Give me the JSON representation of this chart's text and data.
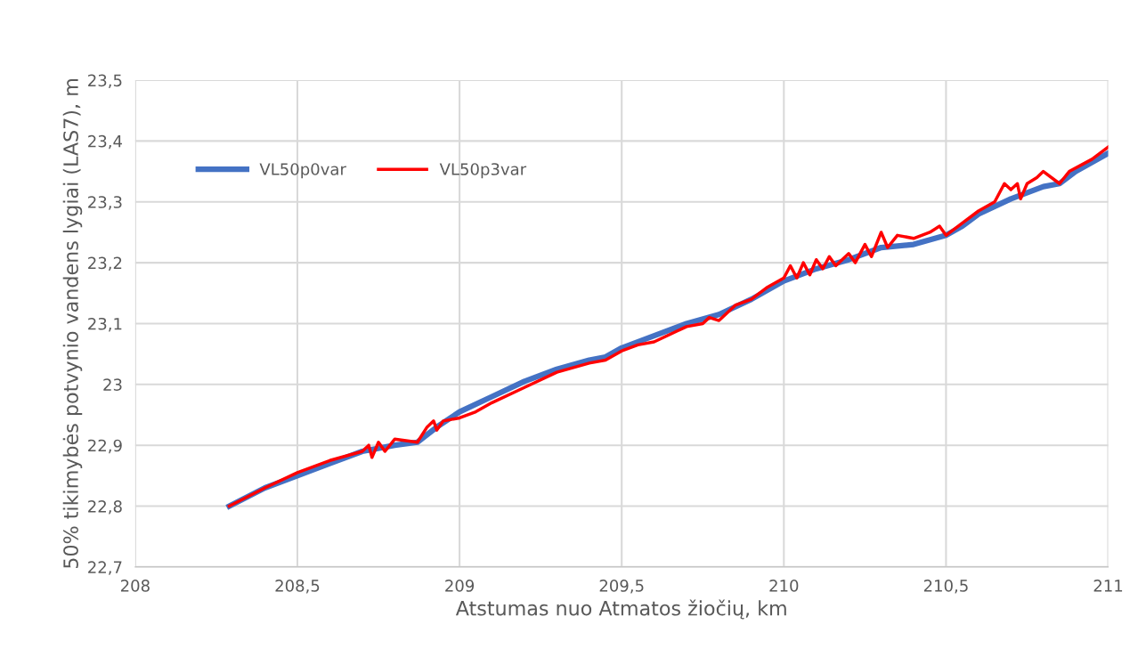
{
  "chart_data": {
    "type": "line",
    "xlabel": "Atstumas nuo Atmatos žiočių, km",
    "ylabel": "50% tikimybės potvynio vandens lygiai (LAS7), m",
    "xlim": [
      208,
      211
    ],
    "xticks": [
      208,
      {
        "value": 208.5,
        "label": "208,5"
      },
      209,
      {
        "value": 209.5,
        "label": "209,5"
      },
      210,
      {
        "value": 210.5,
        "label": "210,5"
      },
      211
    ],
    "ylim": [
      22.7,
      23.5
    ],
    "yticks": [
      {
        "value": 22.7,
        "label": "22,7"
      },
      {
        "value": 22.8,
        "label": "22,8"
      },
      {
        "value": 22.9,
        "label": "22,9"
      },
      23,
      {
        "value": 23.1,
        "label": "23,1"
      },
      {
        "value": 23.2,
        "label": "23,2"
      },
      {
        "value": 23.3,
        "label": "23,3"
      },
      {
        "value": 23.4,
        "label": "23,4"
      },
      {
        "value": 23.5,
        "label": "23,5"
      }
    ],
    "grid": true,
    "legend": "top left",
    "marker": "none",
    "line_style": "solid",
    "series": [
      {
        "name": "VL50p0var",
        "color": "#4472c4",
        "x": [
          208.29,
          208.4,
          208.5,
          208.6,
          208.7,
          208.8,
          208.87,
          208.93,
          209.0,
          209.1,
          209.2,
          209.3,
          209.4,
          209.45,
          209.5,
          209.6,
          209.7,
          209.8,
          209.9,
          210.0,
          210.1,
          210.2,
          210.3,
          210.4,
          210.5,
          210.55,
          210.6,
          210.7,
          210.8,
          210.85,
          210.9,
          211.0
        ],
        "values": [
          22.8,
          22.83,
          22.85,
          22.87,
          22.89,
          22.9,
          22.905,
          22.93,
          22.955,
          22.98,
          23.005,
          23.025,
          23.04,
          23.045,
          23.06,
          23.08,
          23.1,
          23.115,
          23.14,
          23.17,
          23.19,
          23.205,
          23.225,
          23.23,
          23.245,
          23.26,
          23.28,
          23.305,
          23.325,
          23.33,
          23.35,
          23.38
        ]
      },
      {
        "name": "VL50p3var",
        "color": "#ff0000",
        "x": [
          208.29,
          208.4,
          208.5,
          208.6,
          208.7,
          208.72,
          208.73,
          208.75,
          208.77,
          208.8,
          208.87,
          208.9,
          208.92,
          208.93,
          208.95,
          209.0,
          209.05,
          209.1,
          209.2,
          209.3,
          209.4,
          209.45,
          209.5,
          209.55,
          209.6,
          209.7,
          209.75,
          209.77,
          209.8,
          209.85,
          209.9,
          209.95,
          210.0,
          210.02,
          210.04,
          210.06,
          210.08,
          210.1,
          210.12,
          210.14,
          210.16,
          210.2,
          210.22,
          210.25,
          210.27,
          210.3,
          210.32,
          210.35,
          210.4,
          210.45,
          210.48,
          210.5,
          210.55,
          210.6,
          210.65,
          210.68,
          210.7,
          210.72,
          210.73,
          210.75,
          210.78,
          210.8,
          210.85,
          210.88,
          210.95,
          211.0
        ],
        "values": [
          22.8,
          22.83,
          22.855,
          22.875,
          22.89,
          22.9,
          22.88,
          22.905,
          22.89,
          22.91,
          22.905,
          22.93,
          22.94,
          22.925,
          22.94,
          22.945,
          22.955,
          22.97,
          22.995,
          23.02,
          23.035,
          23.04,
          23.055,
          23.065,
          23.07,
          23.095,
          23.1,
          23.11,
          23.105,
          23.13,
          23.14,
          23.16,
          23.175,
          23.195,
          23.175,
          23.2,
          23.18,
          23.205,
          23.19,
          23.21,
          23.195,
          23.215,
          23.2,
          23.23,
          23.21,
          23.25,
          23.225,
          23.245,
          23.24,
          23.25,
          23.26,
          23.245,
          23.265,
          23.285,
          23.3,
          23.33,
          23.32,
          23.33,
          23.305,
          23.33,
          23.34,
          23.35,
          23.33,
          23.35,
          23.37,
          23.39
        ]
      }
    ]
  }
}
